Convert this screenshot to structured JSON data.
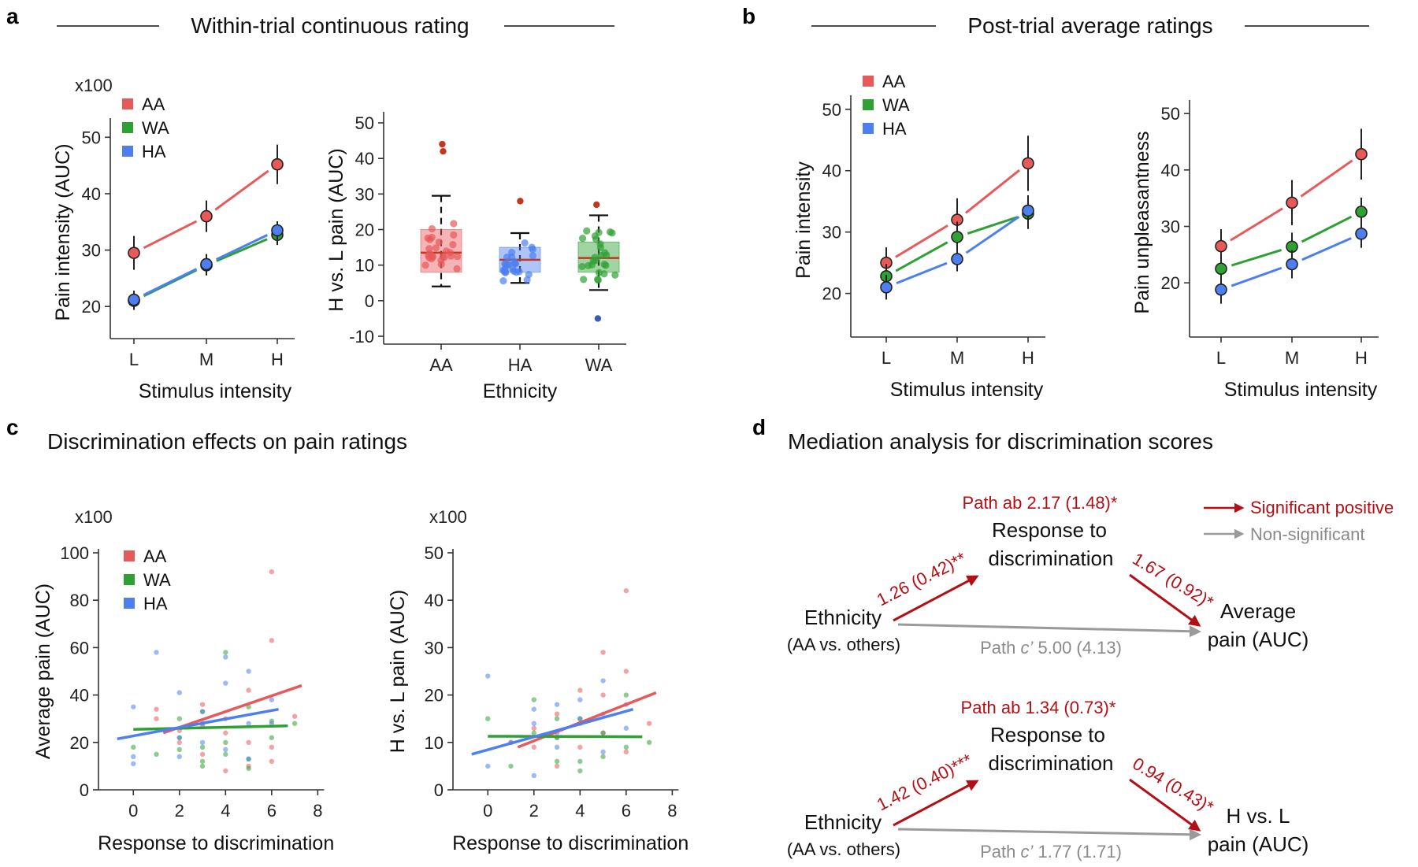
{
  "labels": {
    "a": "a",
    "b": "b",
    "c": "c",
    "d": "d"
  },
  "panel_titles": {
    "a": "Within-trial continuous rating",
    "b": "Post-trial average ratings",
    "c": "Discrimination effects on pain ratings",
    "d": "Mediation analysis for discrimination scores"
  },
  "colors": {
    "AA": "#e8595a",
    "WA": "#2fa033",
    "HA": "#4d7ff0",
    "sig": "#b30f14",
    "nonsig": "#9a9a9a"
  },
  "chart_data": [
    {
      "id": "a1",
      "type": "line",
      "categories": [
        "L",
        "M",
        "H"
      ],
      "series": [
        {
          "name": "AA",
          "values": [
            29.5,
            36.0,
            45.2
          ],
          "err": [
            3.0,
            2.8,
            3.5
          ]
        },
        {
          "name": "WA",
          "values": [
            21.0,
            27.3,
            32.7
          ],
          "err": [
            1.6,
            1.8,
            1.8
          ]
        },
        {
          "name": "HA",
          "values": [
            21.2,
            27.5,
            33.5
          ],
          "err": [
            1.6,
            1.8,
            1.6
          ]
        }
      ],
      "ylim": [
        15,
        52
      ],
      "yticks": [
        20,
        30,
        40,
        50
      ],
      "multiplier": "x100",
      "xlabel": "Stimulus intensity",
      "ylabel": "Pain intensity (AUC)"
    },
    {
      "id": "a2",
      "type": "box",
      "categories": [
        "AA",
        "HA",
        "WA"
      ],
      "boxes": [
        {
          "name": "AA",
          "q1": 8,
          "median": 13.5,
          "q3": 20,
          "wlo": 4,
          "whi": 29.5,
          "outliers": [
            42,
            44
          ]
        },
        {
          "name": "HA",
          "q1": 8,
          "median": 11.5,
          "q3": 15,
          "wlo": 5,
          "whi": 19,
          "outliers": [
            28
          ]
        },
        {
          "name": "WA",
          "q1": 8,
          "median": 12,
          "q3": 16.5,
          "wlo": 3,
          "whi": 24,
          "outliers": [
            27,
            -5
          ]
        }
      ],
      "ylim": [
        -10,
        52
      ],
      "yticks": [
        -10,
        0,
        10,
        20,
        30,
        40,
        50
      ],
      "xlabel": "Ethnicity",
      "ylabel": "H vs. L pain (AUC)"
    },
    {
      "id": "b1",
      "type": "line",
      "categories": [
        "L",
        "M",
        "H"
      ],
      "series": [
        {
          "name": "AA",
          "values": [
            25.0,
            32.0,
            41.2
          ],
          "err": [
            2.5,
            3.5,
            4.5
          ]
        },
        {
          "name": "WA",
          "values": [
            22.8,
            29.2,
            33.0
          ],
          "err": [
            2.0,
            2.5,
            2.5
          ]
        },
        {
          "name": "HA",
          "values": [
            21.0,
            25.6,
            33.5
          ],
          "err": [
            2.0,
            2.0,
            2.5
          ]
        }
      ],
      "ylim": [
        17,
        51
      ],
      "yticks": [
        20,
        30,
        40,
        50
      ],
      "xlabel": "Stimulus intensity",
      "ylabel": "Pain intensity"
    },
    {
      "id": "b2",
      "type": "line",
      "categories": [
        "L",
        "M",
        "H"
      ],
      "series": [
        {
          "name": "AA",
          "values": [
            26.5,
            34.2,
            42.8
          ],
          "err": [
            3.0,
            4.0,
            4.5
          ]
        },
        {
          "name": "WA",
          "values": [
            22.5,
            26.4,
            32.6
          ],
          "err": [
            2.5,
            2.5,
            2.5
          ]
        },
        {
          "name": "HA",
          "values": [
            18.8,
            23.3,
            28.7
          ],
          "err": [
            2.5,
            2.5,
            2.5
          ]
        }
      ],
      "ylim": [
        15,
        51
      ],
      "yticks": [
        20,
        30,
        40,
        50
      ],
      "xlabel": "Stimulus intensity",
      "ylabel": "Pain  unpleasantness"
    },
    {
      "id": "c1",
      "type": "scatter",
      "series": [
        {
          "name": "AA",
          "points": [
            [
              1,
              34
            ],
            [
              2,
              20
            ],
            [
              3,
              36
            ],
            [
              3,
              27
            ],
            [
              4,
              8
            ],
            [
              4,
              24
            ],
            [
              4,
              30
            ],
            [
              5,
              10
            ],
            [
              5,
              20
            ],
            [
              5,
              42
            ],
            [
              6,
              92
            ],
            [
              6,
              63
            ],
            [
              6,
              12
            ],
            [
              6,
              18
            ],
            [
              7,
              31
            ],
            [
              2,
              25
            ],
            [
              3,
              15
            ],
            [
              1,
              30
            ]
          ],
          "fit": [
            [
              1.3,
              24
            ],
            [
              7.3,
              44
            ]
          ]
        },
        {
          "name": "WA",
          "points": [
            [
              0,
              18
            ],
            [
              1,
              15
            ],
            [
              2,
              22
            ],
            [
              2,
              30
            ],
            [
              3,
              12
            ],
            [
              3,
              18
            ],
            [
              3,
              33
            ],
            [
              4,
              15
            ],
            [
              4,
              58
            ],
            [
              4,
              20
            ],
            [
              5,
              9
            ],
            [
              5,
              13
            ],
            [
              5,
              35
            ],
            [
              6,
              29
            ],
            [
              6,
              22
            ],
            [
              7,
              28
            ],
            [
              3,
              10
            ],
            [
              2,
              17
            ]
          ],
          "fit": [
            [
              0,
              25.5
            ],
            [
              6.7,
              27
            ]
          ]
        },
        {
          "name": "HA",
          "points": [
            [
              0,
              35
            ],
            [
              0,
              11
            ],
            [
              0,
              14
            ],
            [
              1,
              58
            ],
            [
              2,
              41
            ],
            [
              2,
              22
            ],
            [
              3,
              20
            ],
            [
              3,
              33
            ],
            [
              3,
              28
            ],
            [
              4,
              45
            ],
            [
              4,
              56
            ],
            [
              4,
              17
            ],
            [
              5,
              50
            ],
            [
              5,
              28
            ],
            [
              5,
              13
            ],
            [
              6,
              38
            ],
            [
              6,
              28
            ],
            [
              2,
              14
            ]
          ],
          "fit": [
            [
              -0.7,
              21.5
            ],
            [
              6.3,
              34
            ]
          ]
        }
      ],
      "xlim": [
        -1,
        8.5
      ],
      "xticks": [
        0,
        2,
        4,
        6,
        8
      ],
      "ylim": [
        0,
        100
      ],
      "yticks": [
        0,
        20,
        40,
        60,
        80,
        100
      ],
      "multiplier": "x100",
      "xlabel": "Response to discrimination",
      "ylabel": "Average pain (AUC)"
    },
    {
      "id": "c2",
      "type": "scatter",
      "series": [
        {
          "name": "AA",
          "points": [
            [
              1,
              10
            ],
            [
              2,
              13
            ],
            [
              3,
              16
            ],
            [
              3,
              5
            ],
            [
              4,
              21
            ],
            [
              4,
              9
            ],
            [
              5,
              29
            ],
            [
              5,
              20
            ],
            [
              5,
              12
            ],
            [
              6,
              42
            ],
            [
              6,
              25
            ],
            [
              6,
              8
            ],
            [
              7,
              14
            ],
            [
              2,
              9
            ],
            [
              3,
              11
            ],
            [
              4,
              14
            ]
          ],
          "fit": [
            [
              1.3,
              9
            ],
            [
              7.3,
              20.5
            ]
          ]
        },
        {
          "name": "WA",
          "points": [
            [
              0,
              15
            ],
            [
              1,
              5
            ],
            [
              2,
              19
            ],
            [
              2,
              12
            ],
            [
              3,
              6
            ],
            [
              3,
              11
            ],
            [
              4,
              6
            ],
            [
              4,
              15
            ],
            [
              5,
              7
            ],
            [
              5,
              12
            ],
            [
              6,
              9
            ],
            [
              6,
              20
            ],
            [
              7,
              10
            ],
            [
              3,
              15
            ],
            [
              4,
              4
            ]
          ],
          "fit": [
            [
              0,
              11.3
            ],
            [
              6.7,
              11.2
            ]
          ]
        },
        {
          "name": "HA",
          "points": [
            [
              0,
              24
            ],
            [
              0,
              5
            ],
            [
              1,
              10
            ],
            [
              2,
              3
            ],
            [
              2,
              14
            ],
            [
              3,
              18
            ],
            [
              3,
              9
            ],
            [
              3,
              12
            ],
            [
              4,
              19
            ],
            [
              4,
              15
            ],
            [
              5,
              23
            ],
            [
              5,
              16
            ],
            [
              5,
              8
            ],
            [
              6,
              18
            ],
            [
              6,
              13
            ],
            [
              2,
              17
            ]
          ],
          "fit": [
            [
              -0.7,
              7.5
            ],
            [
              6.3,
              17
            ]
          ]
        }
      ],
      "xlim": [
        -1,
        8.5
      ],
      "xticks": [
        0,
        2,
        4,
        6,
        8
      ],
      "ylim": [
        0,
        50
      ],
      "yticks": [
        0,
        10,
        20,
        30,
        40,
        50
      ],
      "multiplier": "x100",
      "xlabel": "Response to discrimination",
      "ylabel": "H vs. L pain (AUC)"
    }
  ],
  "legend": [
    "AA",
    "WA",
    "HA"
  ],
  "mediation": {
    "legend": {
      "sig": "Significant positive",
      "nonsig": "Non-significant"
    },
    "diagrams": [
      {
        "path_ab": "Path ab 2.17 (1.48)*",
        "mediator_1": "Response to",
        "mediator_2": "discrimination",
        "x_1": "Ethnicity",
        "x_2": "(AA vs. others)",
        "y_1": "Average",
        "y_2": "pain (AUC)",
        "path_a": "1.26 (0.42)**",
        "path_b": "1.67 (0.92)*",
        "path_c_prefix": "Path ",
        "path_c_var": "c’",
        "path_c_val": " 5.00 (4.13)"
      },
      {
        "path_ab": "Path ab 1.34 (0.73)*",
        "mediator_1": "Response to",
        "mediator_2": "discrimination",
        "x_1": "Ethnicity",
        "x_2": "(AA vs. others)",
        "y_1": "H vs. L",
        "y_2": "pain (AUC)",
        "path_a": "1.42 (0.40)***",
        "path_b": "0.94 (0.43)*",
        "path_c_prefix": "Path ",
        "path_c_var": "c’",
        "path_c_val": " 1.77 (1.71)"
      }
    ]
  }
}
